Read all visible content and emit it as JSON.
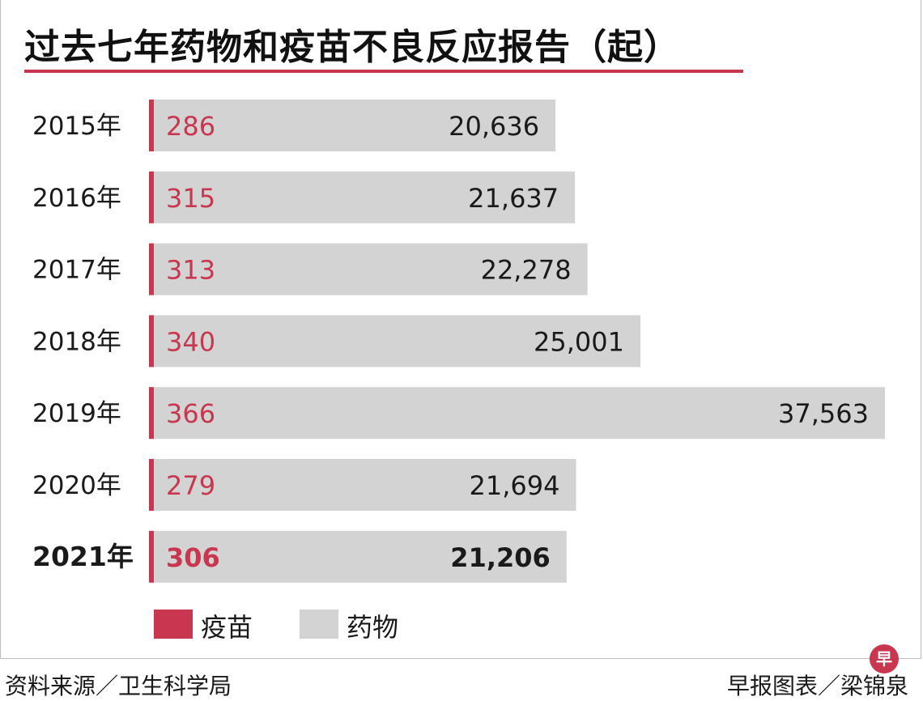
{
  "chart_data": {
    "type": "bar",
    "orientation": "horizontal",
    "stacked": true,
    "title": "过去七年药物和疫苗不良反应报告（起）",
    "categories": [
      "2015年",
      "2016年",
      "2017年",
      "2018年",
      "2019年",
      "2020年",
      "2021年"
    ],
    "value_labels": {
      "vaccine": [
        "286",
        "315",
        "313",
        "340",
        "366",
        "279",
        "306"
      ],
      "drug": [
        "20,636",
        "21,637",
        "22,278",
        "25,001",
        "37,563",
        "21,694",
        "21,206"
      ]
    },
    "series": [
      {
        "name": "疫苗",
        "values": [
          286,
          315,
          313,
          340,
          366,
          279,
          306
        ],
        "color": "#c8374f"
      },
      {
        "name": "药物",
        "values": [
          20636,
          21637,
          22278,
          25001,
          37563,
          21694,
          21206
        ],
        "color": "#d3d3d3"
      }
    ],
    "highlight_category": "2021年",
    "legend_position": "bottom-left",
    "grid": false
  },
  "legend": {
    "vaccine_label": "疫苗",
    "drug_label": "药物"
  },
  "footer": {
    "source": "资料来源／卫生科学局",
    "credit": "早报图表／梁锦泉"
  },
  "logo": {
    "text": "早"
  }
}
